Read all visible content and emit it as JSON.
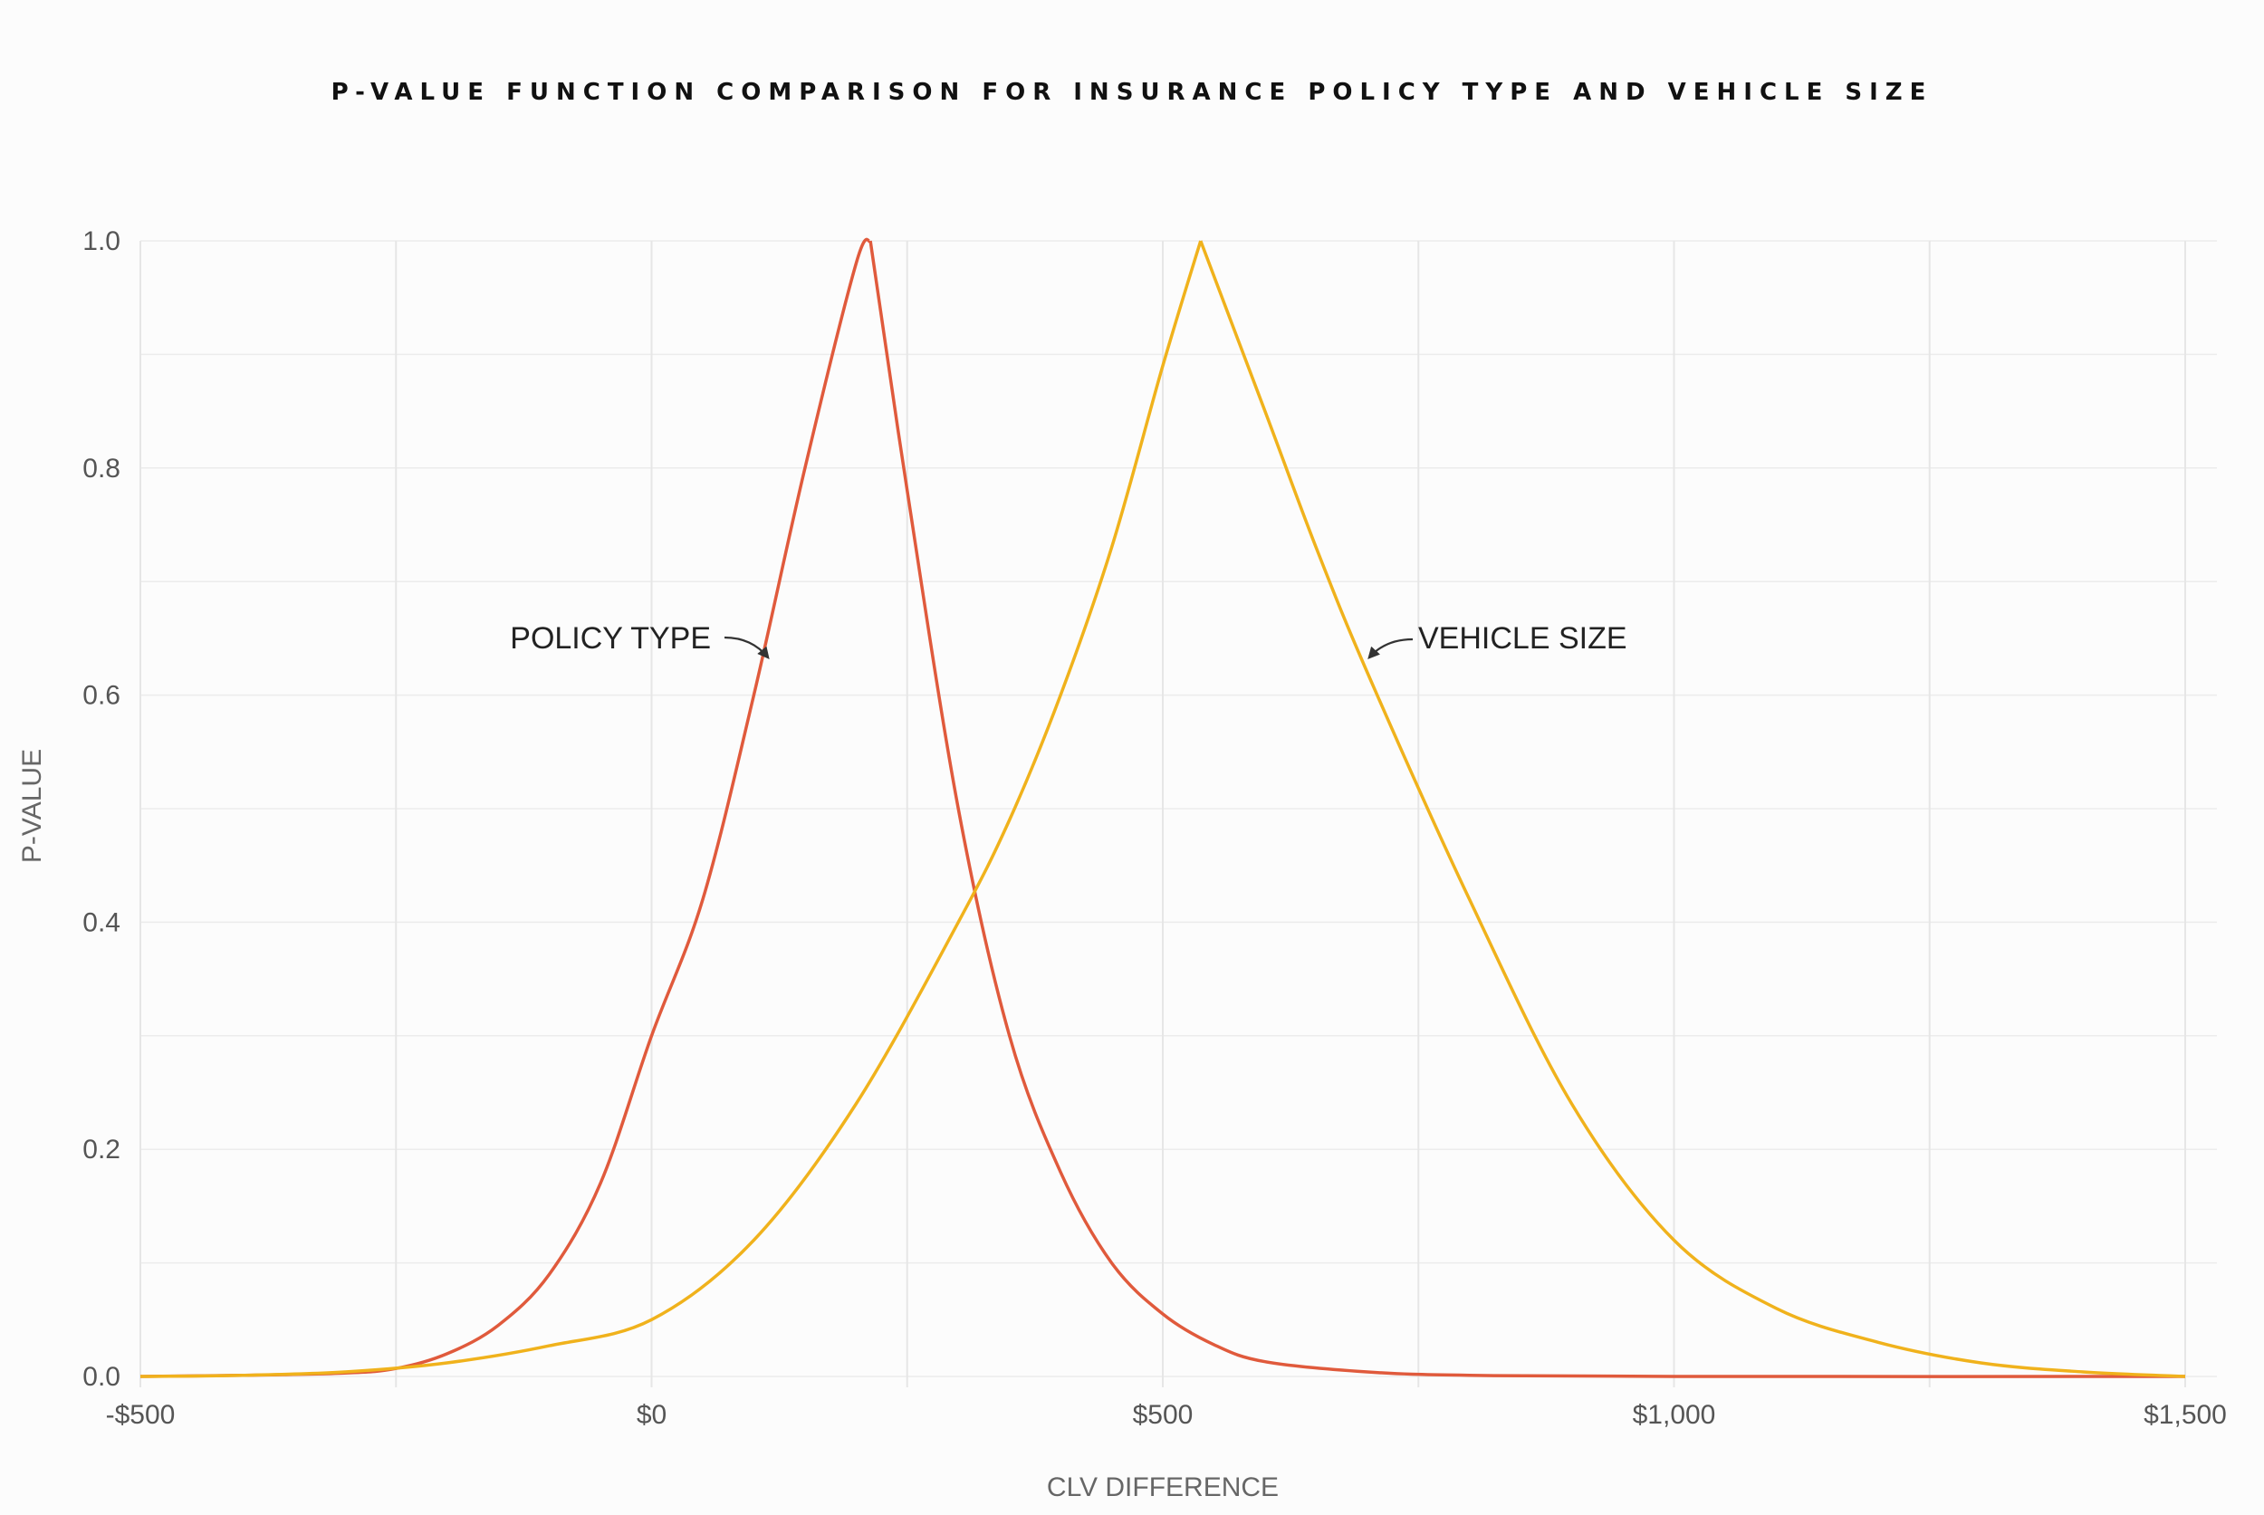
{
  "chart_data": {
    "type": "line",
    "title": "P-VALUE FUNCTION COMPARISON FOR INSURANCE POLICY TYPE AND VEHICLE SIZE",
    "xlabel": "CLV DIFFERENCE",
    "ylabel": "P-VALUE",
    "xlim": [
      -500,
      1500
    ],
    "ylim": [
      0,
      1
    ],
    "x_ticks": [
      -500,
      0,
      500,
      1000,
      1500
    ],
    "x_tick_labels": [
      "-$500",
      "$0",
      "$500",
      "$1,000",
      "$1,500"
    ],
    "y_ticks": [
      0,
      0.2,
      0.4,
      0.6,
      0.8,
      1.0
    ],
    "y_tick_labels": [
      "0.0",
      "0.2",
      "0.4",
      "0.6",
      "0.8",
      "1.0"
    ],
    "grid": true,
    "series": [
      {
        "name": "POLICY TYPE",
        "color": "#e05a3c",
        "x": [
          -500,
          -400,
          -300,
          -250,
          -200,
          -150,
          -100,
          -50,
          0,
          50,
          100,
          150,
          200,
          214,
          250,
          300,
          350,
          400,
          450,
          500,
          550,
          600,
          700,
          800,
          1000,
          1500
        ],
        "y": [
          0.0,
          0.001,
          0.003,
          0.007,
          0.02,
          0.045,
          0.09,
          0.17,
          0.3,
          0.42,
          0.6,
          0.8,
          0.98,
          1.0,
          0.78,
          0.5,
          0.3,
          0.18,
          0.1,
          0.055,
          0.028,
          0.013,
          0.004,
          0.001,
          0.0,
          0.0
        ]
      },
      {
        "name": "VEHICLE SIZE",
        "color": "#f0b21c",
        "x": [
          -500,
          -400,
          -300,
          -200,
          -100,
          0,
          100,
          200,
          300,
          350,
          400,
          450,
          500,
          537,
          600,
          650,
          700,
          800,
          900,
          1000,
          1100,
          1200,
          1300,
          1400,
          1500
        ],
        "y": [
          0.0,
          0.001,
          0.004,
          0.012,
          0.027,
          0.05,
          0.12,
          0.24,
          0.4,
          0.49,
          0.6,
          0.73,
          0.89,
          1.0,
          0.85,
          0.73,
          0.62,
          0.42,
          0.24,
          0.12,
          0.06,
          0.03,
          0.012,
          0.004,
          0.0
        ]
      }
    ],
    "annotations": [
      {
        "text": "POLICY TYPE",
        "series": 0
      },
      {
        "text": "VEHICLE SIZE",
        "series": 1
      }
    ]
  }
}
